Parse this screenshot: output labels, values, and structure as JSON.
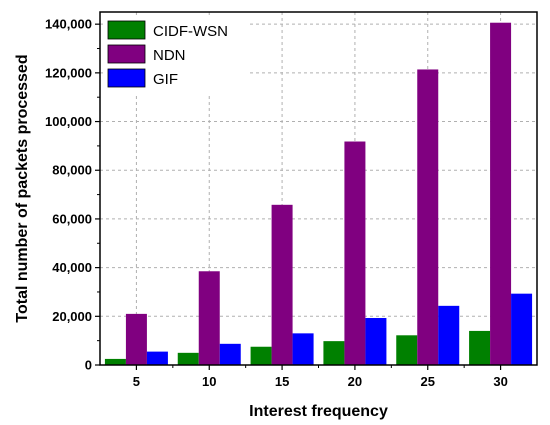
{
  "chart_data": {
    "type": "bar",
    "xlabel": "Interest frequency",
    "ylabel": "Total number of packets processed",
    "categories": [
      "5",
      "10",
      "15",
      "20",
      "25",
      "30"
    ],
    "ylim": [
      0,
      145000
    ],
    "yticks": [
      0,
      20000,
      40000,
      60000,
      80000,
      100000,
      120000,
      140000
    ],
    "ytick_labels": [
      "0",
      "20,000",
      "40,000",
      "60,000",
      "80,000",
      "100,000",
      "120,000",
      "140,000"
    ],
    "grid": true,
    "legend_position": "top-left",
    "series": [
      {
        "name": "CIDF-WSN",
        "color": "#008000",
        "values": [
          2500,
          5000,
          7500,
          9800,
          12200,
          14000
        ]
      },
      {
        "name": "NDN",
        "color": "#800080",
        "values": [
          21000,
          38500,
          65800,
          91800,
          121400,
          140600
        ]
      },
      {
        "name": "GIF",
        "color": "#0000ff",
        "values": [
          5500,
          8700,
          13000,
          19300,
          24300,
          29300
        ]
      }
    ]
  }
}
